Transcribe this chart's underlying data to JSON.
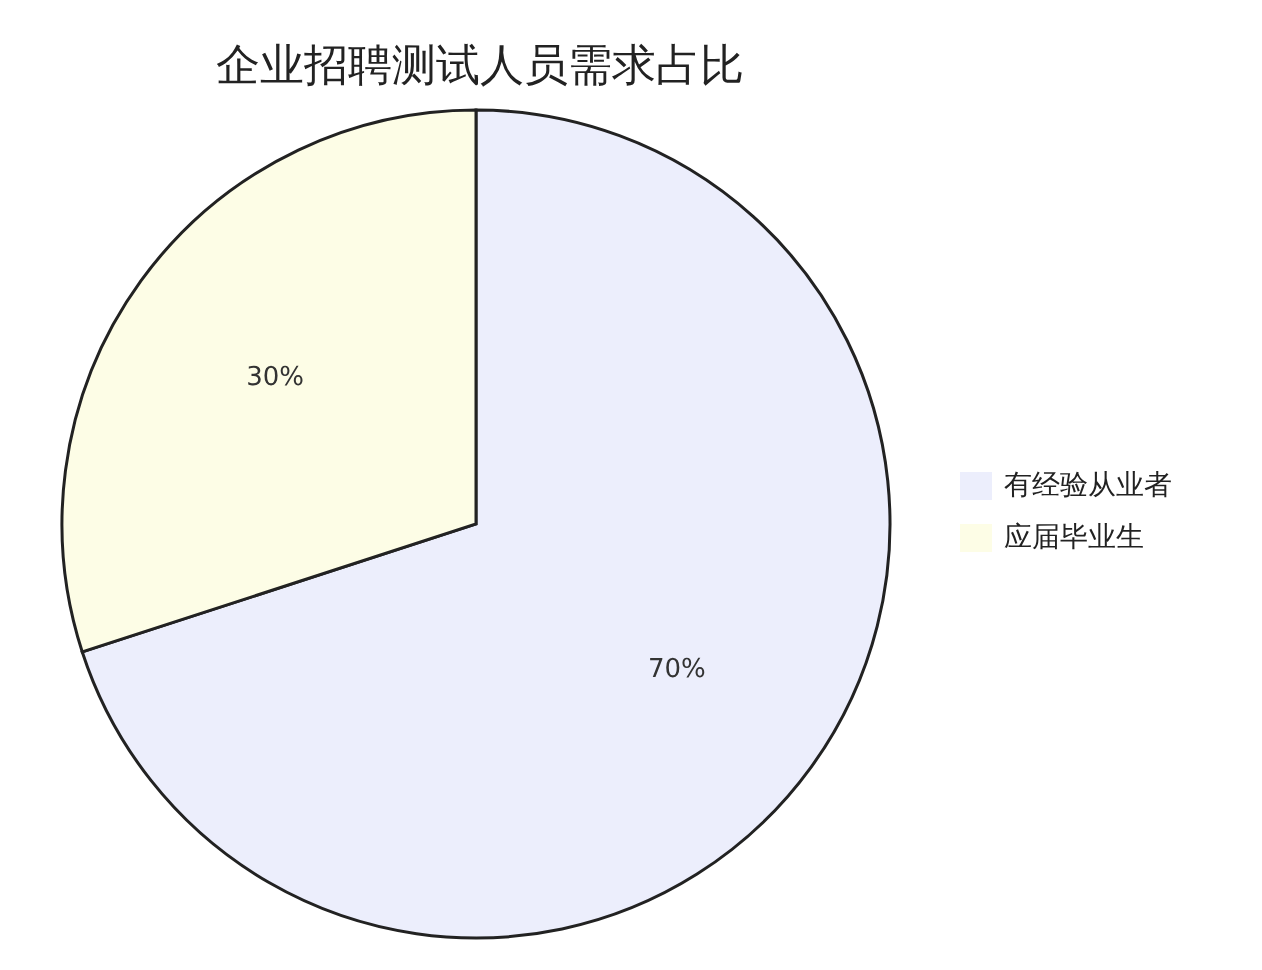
{
  "chart_data": {
    "type": "pie",
    "title": "企业招聘测试人员需求占比",
    "categories": [
      "有经验从业者",
      "应届毕业生"
    ],
    "values": [
      70,
      30
    ],
    "colors": [
      "#eceefc",
      "#fdfde6"
    ],
    "value_labels": [
      "70%",
      "30%"
    ],
    "legend": "right"
  }
}
